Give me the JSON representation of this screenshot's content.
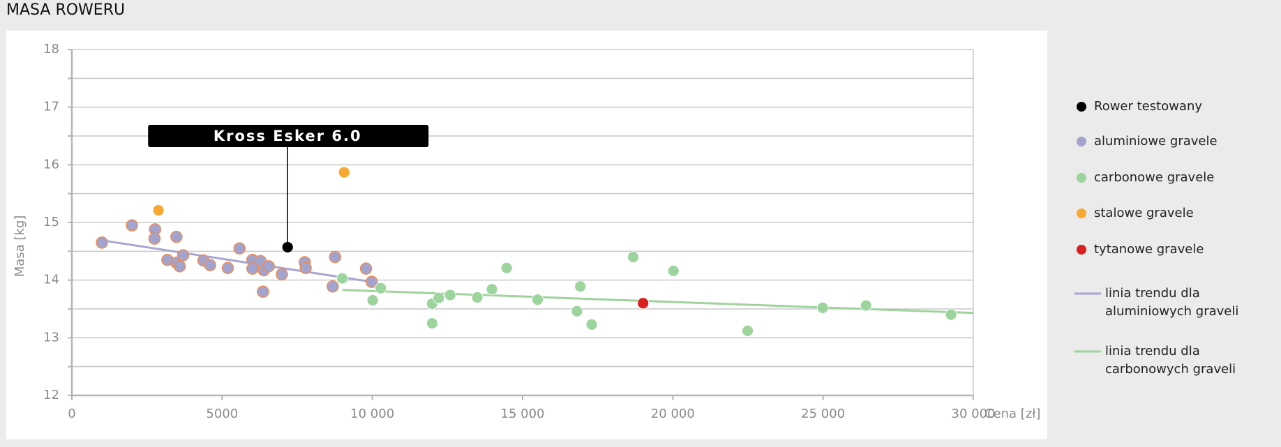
{
  "chart_data": {
    "type": "scatter",
    "title": "MASA ROWERU",
    "x_label": "Cena [zł]",
    "y_label": "Masa [kg]",
    "annotation": "Kross Esker 6.0",
    "xlim": [
      0,
      30000
    ],
    "ylim": [
      12,
      18
    ],
    "xticks": [
      0,
      5000,
      {
        "value": 10000,
        "label": "10 000"
      },
      {
        "value": 15000,
        "label": "15 000"
      },
      {
        "value": 20000,
        "label": "20 000"
      },
      {
        "value": 25000,
        "label": "25 000"
      },
      {
        "value": 30000,
        "label": "30 000"
      }
    ],
    "yticks": [
      12,
      13,
      14,
      15,
      16,
      17,
      18
    ],
    "y_minor_ticks": [
      12.5,
      13.5,
      14.5,
      15.5,
      16.5,
      17.5
    ],
    "grid": true,
    "series": [
      {
        "name": "Rower testowany",
        "color": "#000000",
        "x": [
          7180
        ],
        "values": [
          14.57
        ]
      },
      {
        "name": "aluminiowe gravele",
        "color": "#a3a3cf",
        "stroke": "#ee8c52",
        "x": [
          1000,
          2000,
          2770,
          2750,
          3180,
          3480,
          3480,
          3590,
          3700,
          4380,
          4600,
          5190,
          5580,
          6010,
          6010,
          6280,
          6390,
          6550,
          6360,
          6990,
          7750,
          7780,
          8760,
          8680,
          9790,
          9980
        ],
        "values": [
          14.65,
          14.95,
          14.88,
          14.72,
          14.35,
          14.75,
          14.3,
          14.24,
          14.43,
          14.34,
          14.26,
          14.21,
          14.55,
          14.35,
          14.2,
          14.33,
          14.17,
          14.24,
          13.8,
          14.1,
          14.31,
          14.21,
          14.4,
          13.89,
          14.2,
          13.97
        ]
      },
      {
        "name": "carbonowe gravele",
        "color": "#9dd49d",
        "x": [
          9000,
          10010,
          10280,
          11990,
          11990,
          12210,
          12590,
          13490,
          13980,
          14470,
          15500,
          16810,
          16920,
          17300,
          18680,
          20020,
          22490,
          24990,
          26430,
          29260
        ],
        "values": [
          14.03,
          13.65,
          13.86,
          13.59,
          13.25,
          13.69,
          13.74,
          13.7,
          13.84,
          14.21,
          13.66,
          13.46,
          13.89,
          13.23,
          14.4,
          14.16,
          13.12,
          13.52,
          13.56,
          13.4
        ]
      },
      {
        "name": "stalowe gravele",
        "color": "#f7a833",
        "x": [
          2880,
          9060
        ],
        "values": [
          15.21,
          15.87
        ]
      },
      {
        "name": "tytanowe gravele",
        "color": "#d82020",
        "x": [
          19010
        ],
        "values": [
          13.6
        ]
      },
      {
        "name": "linia trendu dla aluminiowych graveli",
        "kind": "line",
        "color": "#a6a6d4",
        "x": [
          870,
          9980
        ],
        "values": [
          14.7,
          13.97
        ]
      },
      {
        "name": "linia trendu dla carbonowych graveli",
        "kind": "line",
        "color": "#9ed39b",
        "x": [
          9000,
          30000
        ],
        "values": [
          13.83,
          13.43
        ]
      }
    ]
  }
}
